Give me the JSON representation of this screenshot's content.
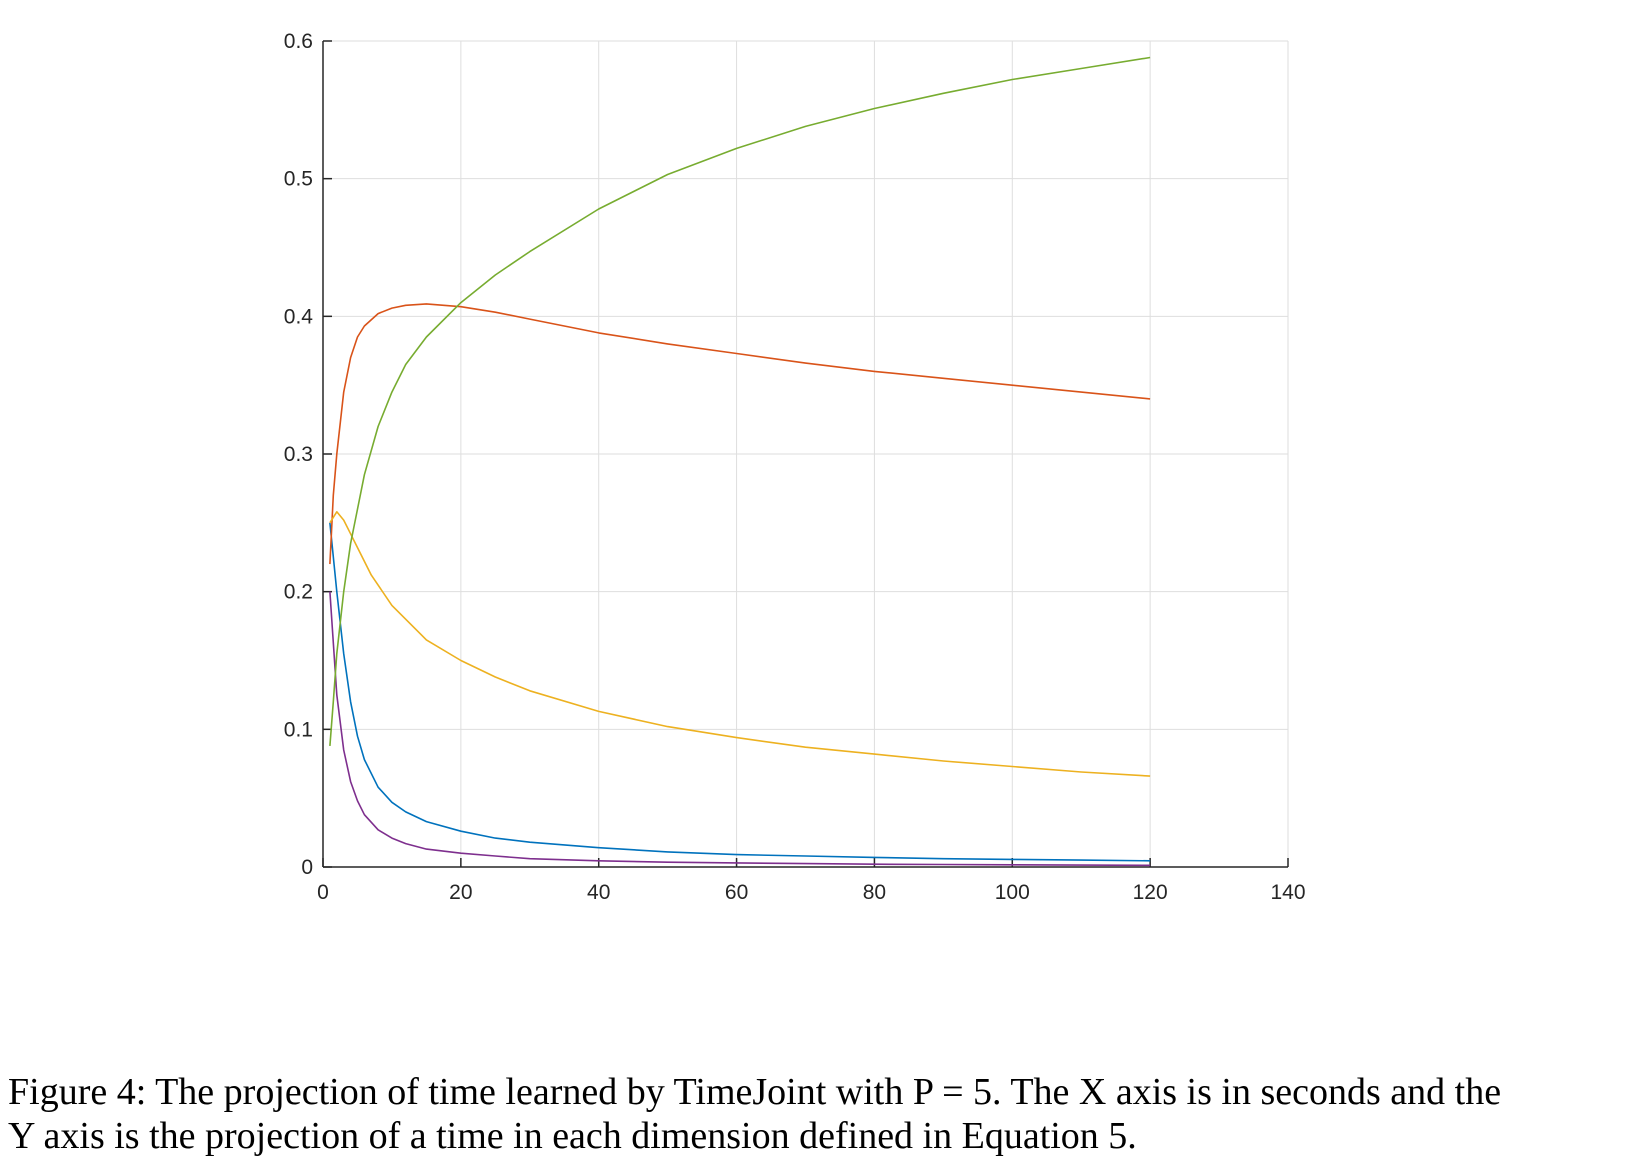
{
  "chart_data": {
    "type": "line",
    "title": "",
    "xlabel": "",
    "ylabel": "",
    "xlim": [
      0,
      140
    ],
    "ylim": [
      0,
      0.6
    ],
    "xticks": [
      0,
      20,
      40,
      60,
      80,
      100,
      120,
      140
    ],
    "yticks": [
      0,
      0.1,
      0.2,
      0.3,
      0.4,
      0.5,
      0.6
    ],
    "xtick_labels": [
      "0",
      "20",
      "40",
      "60",
      "80",
      "100",
      "120",
      "140"
    ],
    "ytick_labels": [
      "0",
      "0.1",
      "0.2",
      "0.3",
      "0.4",
      "0.5",
      "0.6"
    ],
    "grid": true,
    "legend": "none",
    "series": [
      {
        "color": "#0072BD",
        "x": [
          1,
          2,
          3,
          4,
          5,
          6,
          8,
          10,
          12,
          15,
          20,
          25,
          30,
          40,
          50,
          60,
          70,
          80,
          90,
          100,
          110,
          120
        ],
        "y": [
          0.25,
          0.2,
          0.155,
          0.12,
          0.095,
          0.078,
          0.058,
          0.047,
          0.04,
          0.033,
          0.026,
          0.021,
          0.018,
          0.014,
          0.011,
          0.009,
          0.008,
          0.007,
          0.006,
          0.0055,
          0.005,
          0.0045
        ]
      },
      {
        "color": "#D95319",
        "x": [
          1,
          1.5,
          2,
          3,
          4,
          5,
          6,
          8,
          10,
          12,
          15,
          20,
          25,
          30,
          40,
          50,
          60,
          70,
          80,
          90,
          100,
          110,
          120
        ],
        "y": [
          0.22,
          0.27,
          0.3,
          0.345,
          0.37,
          0.385,
          0.393,
          0.402,
          0.406,
          0.408,
          0.409,
          0.407,
          0.403,
          0.398,
          0.388,
          0.38,
          0.373,
          0.366,
          0.36,
          0.355,
          0.35,
          0.345,
          0.34
        ]
      },
      {
        "color": "#EDB120",
        "x": [
          1,
          2,
          3,
          4,
          5,
          7,
          10,
          15,
          20,
          25,
          30,
          40,
          50,
          60,
          70,
          80,
          90,
          100,
          110,
          120
        ],
        "y": [
          0.25,
          0.258,
          0.252,
          0.242,
          0.232,
          0.212,
          0.19,
          0.165,
          0.15,
          0.138,
          0.128,
          0.113,
          0.102,
          0.094,
          0.087,
          0.082,
          0.077,
          0.073,
          0.069,
          0.066
        ]
      },
      {
        "color": "#7E2F8E",
        "x": [
          1,
          2,
          3,
          4,
          5,
          6,
          8,
          10,
          12,
          15,
          20,
          25,
          30,
          40,
          50,
          60,
          70,
          80,
          90,
          100,
          110,
          120
        ],
        "y": [
          0.2,
          0.125,
          0.085,
          0.062,
          0.048,
          0.038,
          0.027,
          0.021,
          0.017,
          0.013,
          0.01,
          0.008,
          0.006,
          0.0045,
          0.0035,
          0.003,
          0.0025,
          0.002,
          0.0018,
          0.0016,
          0.0014,
          0.0012
        ]
      },
      {
        "color": "#77AC30",
        "x": [
          1,
          1.5,
          2,
          3,
          4,
          5,
          6,
          8,
          10,
          12,
          15,
          20,
          25,
          30,
          40,
          50,
          60,
          70,
          80,
          90,
          100,
          110,
          120
        ],
        "y": [
          0.088,
          0.12,
          0.155,
          0.2,
          0.235,
          0.26,
          0.285,
          0.32,
          0.345,
          0.365,
          0.385,
          0.41,
          0.43,
          0.447,
          0.478,
          0.503,
          0.522,
          0.538,
          0.551,
          0.562,
          0.572,
          0.58,
          0.588
        ]
      }
    ]
  },
  "caption": {
    "line1": "Figure 4: The projection of time learned by TimeJoint with P = 5. The X axis is in seconds and the",
    "line2": "Y axis is the projection of a time in each dimension defined in Equation 5."
  }
}
